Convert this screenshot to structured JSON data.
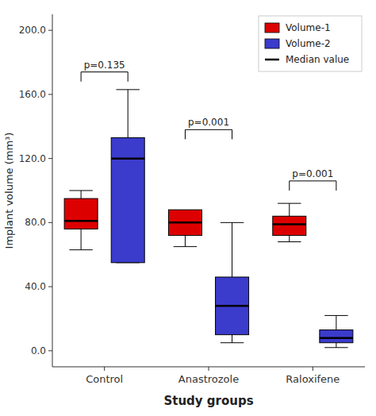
{
  "chart_data": {
    "type": "box",
    "title": "",
    "xlabel": "Study groups",
    "ylabel": "Implant volume (mm³)",
    "categories": [
      "Control",
      "Anastrozole",
      "Raloxifene"
    ],
    "series": [
      {
        "name": "Volume-1",
        "color": "#DD0000",
        "values": [
          {
            "whislo": 63,
            "q1": 76,
            "med": 81,
            "q3": 95,
            "whishi": 100
          },
          {
            "whislo": 65,
            "q1": 72,
            "med": 80,
            "q3": 88,
            "whishi": 80
          },
          {
            "whislo": 68,
            "q1": 72,
            "med": 79,
            "q3": 84,
            "whishi": 92
          }
        ]
      },
      {
        "name": "Volume-2",
        "color": "#3B3BCC",
        "values": [
          {
            "whislo": 55,
            "q1": 55,
            "med": 120,
            "q3": 133,
            "whishi": 163
          },
          {
            "whislo": 5,
            "q1": 10,
            "med": 28,
            "q3": 46,
            "whishi": 80
          },
          {
            "whislo": 2,
            "q1": 5,
            "med": 8,
            "q3": 13,
            "whishi": 22
          }
        ]
      }
    ],
    "median_label": "Median value",
    "annotations": [
      {
        "text": "p=0.135",
        "y": 174,
        "dy": 6
      },
      {
        "text": "p=0.001",
        "y": 138,
        "dy": 6
      },
      {
        "text": "p=0.001",
        "y": 106,
        "dy": 6
      }
    ],
    "ylim": [
      -10,
      210
    ],
    "yticks": [
      {
        "value": 0.0,
        "label": "0.0"
      },
      {
        "value": 40.0,
        "label": "40.0"
      },
      {
        "value": 80.0,
        "label": "80.0"
      },
      {
        "value": 120.0,
        "label": "120.0"
      },
      {
        "value": 160.0,
        "label": "160.0"
      },
      {
        "value": 200.0,
        "label": "200.0"
      }
    ],
    "grid": false,
    "legend": "upper right"
  }
}
